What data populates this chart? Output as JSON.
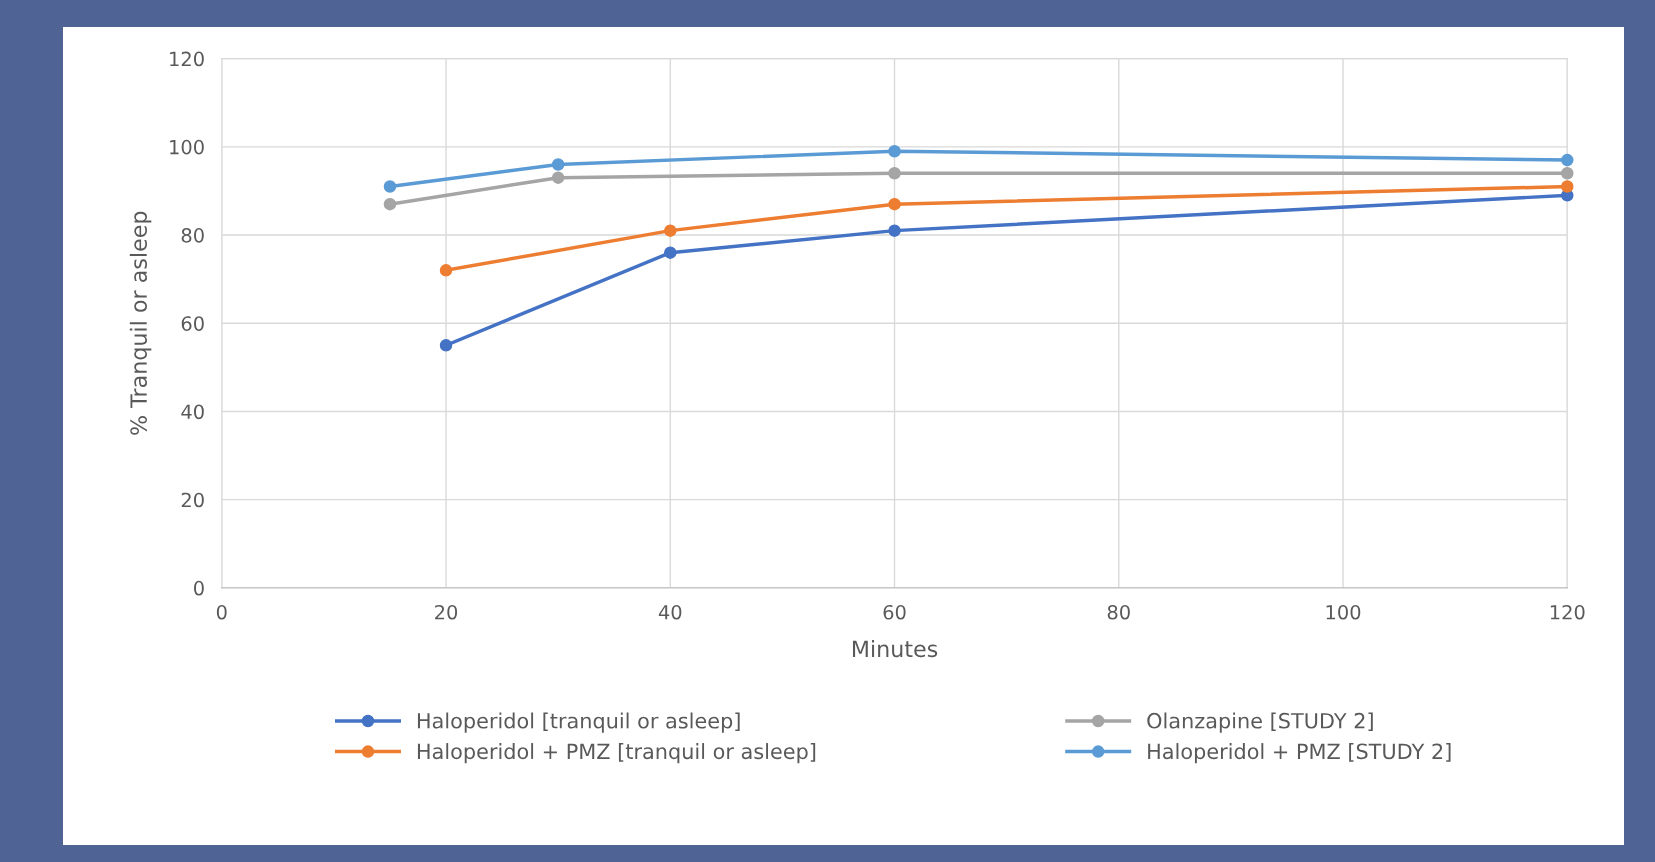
{
  "chart_data": {
    "type": "line",
    "xlabel": "Minutes",
    "ylabel": "% Tranquil or asleep",
    "xlim": [
      0,
      120
    ],
    "xticks": [
      0,
      20,
      40,
      60,
      80,
      100,
      120
    ],
    "ylim": [
      0,
      120
    ],
    "yticks": [
      0,
      20,
      40,
      60,
      80,
      100,
      120
    ],
    "grid": true,
    "legend": "bottom",
    "marker": "circle",
    "line_style": "solid",
    "series": [
      {
        "name": "Haloperidol [tranquil or asleep]",
        "color": "#4472c4",
        "x": [
          20,
          40,
          60,
          120
        ],
        "values": [
          55,
          76,
          81,
          89
        ]
      },
      {
        "name": "Haloperidol + PMZ [tranquil or asleep]",
        "color": "#ed7d31",
        "x": [
          20,
          40,
          60,
          120
        ],
        "values": [
          72,
          81,
          87,
          91
        ]
      },
      {
        "name": "Olanzapine [STUDY 2]",
        "color": "#a5a5a5",
        "x": [
          15,
          30,
          60,
          120
        ],
        "values": [
          87,
          93,
          94,
          94
        ]
      },
      {
        "name": "Haloperidol + PMZ [STUDY 2]",
        "color": "#5b9bd5",
        "x": [
          15,
          30,
          60,
          120
        ],
        "values": [
          91,
          96,
          99,
          97
        ]
      }
    ]
  }
}
